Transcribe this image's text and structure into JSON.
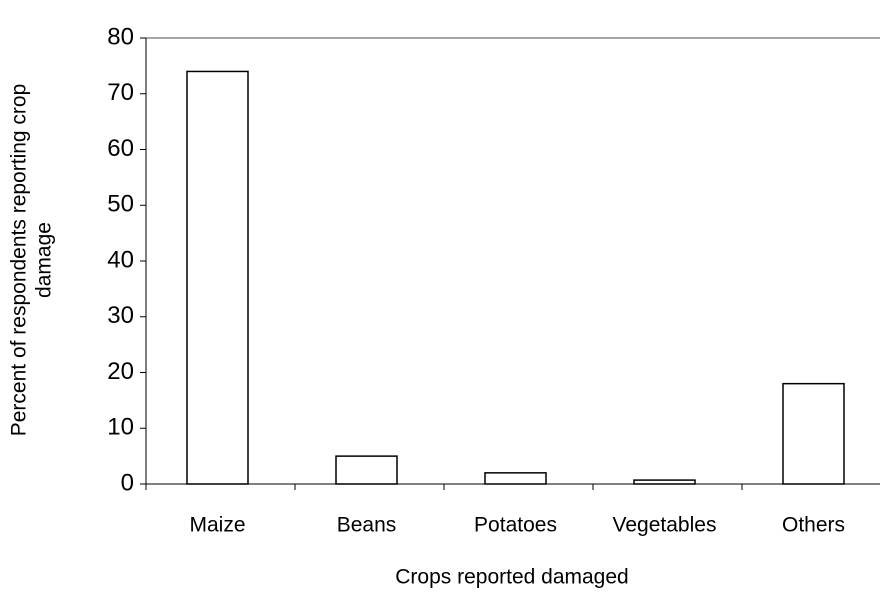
{
  "chart_data": {
    "type": "bar",
    "x_label": "Crops reported damaged",
    "y_label": [
      "Percent of respondents reporting crop",
      "damage"
    ],
    "categories": [
      "Maize",
      "Beans",
      "Potatoes",
      "Vegetables",
      "Others"
    ],
    "values": [
      74,
      5,
      2,
      0.7,
      18
    ],
    "color": "#ffffff",
    "ylim": [
      0,
      80
    ],
    "yticks": [
      0,
      10,
      20,
      30,
      40,
      50,
      60,
      70,
      80
    ],
    "grid": false
  }
}
